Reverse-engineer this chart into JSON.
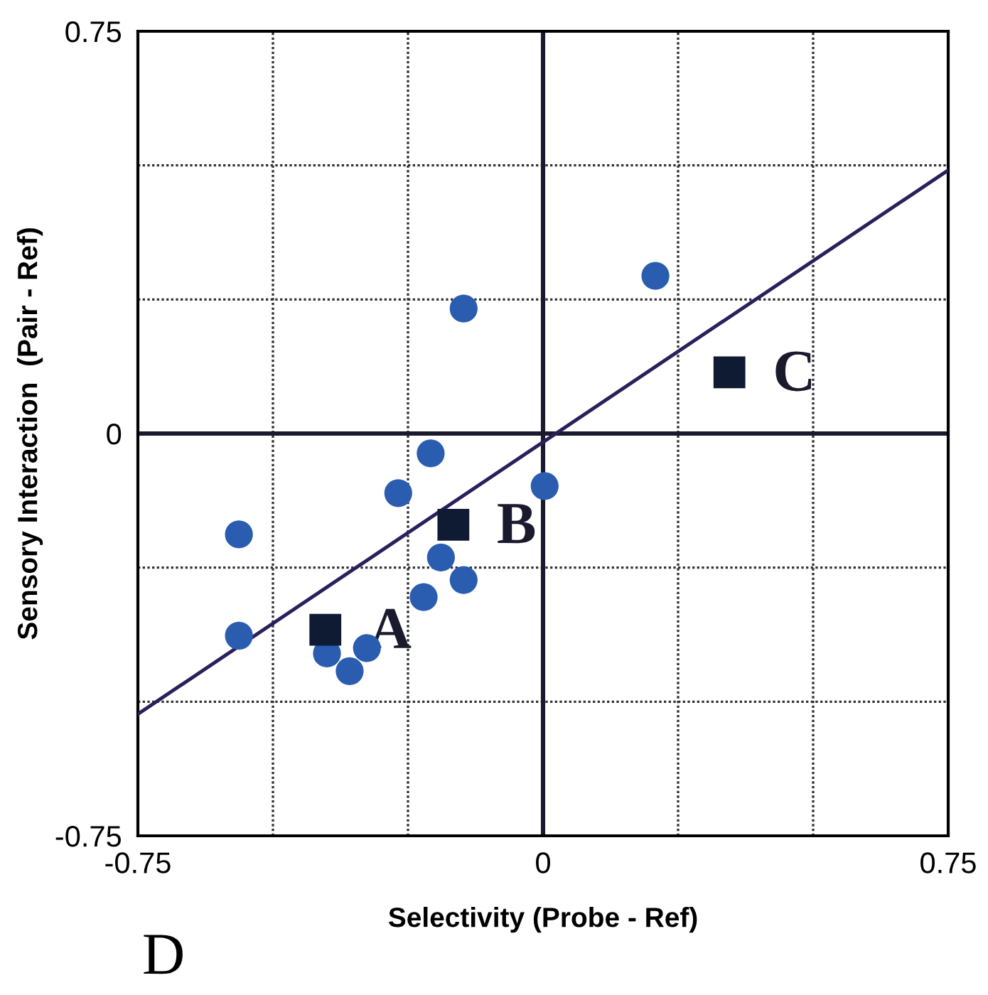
{
  "chart_data": {
    "type": "scatter",
    "xlabel": "Selectivity (Probe - Ref)",
    "ylabel": "Sensory Interaction  (Pair - Ref)",
    "xlim": [
      -0.75,
      0.75
    ],
    "ylim": [
      -0.75,
      0.75
    ],
    "xticks": [
      -0.75,
      {
        "value": -0.5,
        "label": null
      },
      {
        "value": -0.25,
        "label": null
      },
      0,
      {
        "value": 0.25,
        "label": null
      },
      {
        "value": 0.5,
        "label": null
      },
      0.75
    ],
    "yticks": [
      -0.75,
      {
        "value": -0.5,
        "label": null
      },
      {
        "value": -0.25,
        "label": null
      },
      0,
      {
        "value": 0.25,
        "label": null
      },
      {
        "value": 0.5,
        "label": null
      },
      0.75
    ],
    "grid": true,
    "series": [
      {
        "marker": "circle",
        "color": "#2a5db0",
        "x": [
          -0.563,
          -0.563,
          -0.4,
          -0.358,
          -0.326,
          -0.268,
          -0.208,
          -0.147,
          -0.189,
          -0.147,
          -0.221,
          0.003,
          0.208
        ],
        "values": [
          -0.188,
          -0.377,
          -0.41,
          -0.443,
          -0.4,
          -0.111,
          -0.037,
          0.233,
          -0.231,
          -0.273,
          -0.305,
          -0.098,
          0.294
        ]
      },
      {
        "marker": "square",
        "color": "#0f1a33",
        "x": [
          -0.403,
          -0.166,
          0.345
        ],
        "values": [
          -0.366,
          -0.17,
          0.114
        ]
      },
      {
        "type": "line",
        "marker": "none",
        "color": "#2b1f5c",
        "x": [
          -0.75,
          0.75
        ],
        "values": [
          -0.523,
          0.491
        ]
      }
    ],
    "annotations": [
      {
        "text": "A",
        "x": -0.403,
        "y": -0.366
      },
      {
        "text": "B",
        "x": -0.166,
        "y": -0.17
      },
      {
        "text": "C",
        "x": 0.345,
        "y": 0.114
      },
      "D"
    ]
  }
}
